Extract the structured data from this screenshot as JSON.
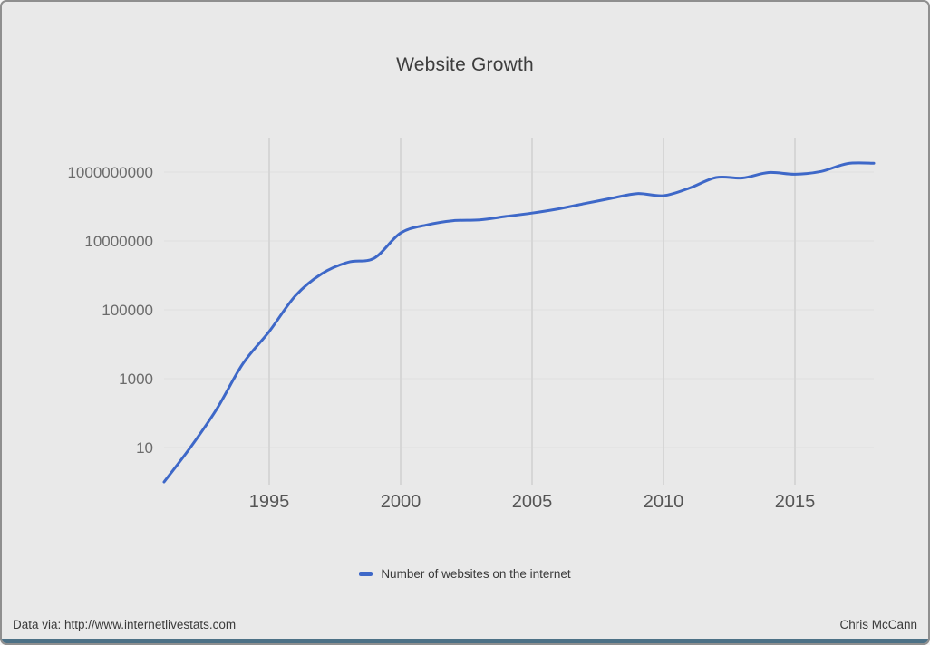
{
  "title": "Website Growth",
  "legend": {
    "label": "Number of websites on the internet",
    "color": "#3e68c8"
  },
  "footer": {
    "source": "Data via: http://www.internetlivestats.com",
    "author": "Chris McCann"
  },
  "colors": {
    "background": "#e9e9e9",
    "grid": "#d6d6d6",
    "grid_horizontal": "#dfdfdf",
    "line": "#3e68c8",
    "axis_text": "#6b6b6b",
    "x_axis_text": "#555555",
    "bottom_bar": "#4d7186"
  },
  "chart_data": {
    "type": "line",
    "title": "Website Growth",
    "xlabel": "",
    "ylabel": "",
    "y_scale": "log",
    "xlim": [
      1991,
      2018
    ],
    "ylim": [
      1,
      10000000000
    ],
    "x_ticks": [
      1995,
      2000,
      2005,
      2010,
      2015
    ],
    "y_ticks": [
      10,
      1000,
      100000,
      10000000,
      1000000000
    ],
    "grid": "on",
    "legend_position": "bottom",
    "x": [
      1991,
      1992,
      1993,
      1994,
      1995,
      1996,
      1997,
      1998,
      1999,
      2000,
      2001,
      2002,
      2003,
      2004,
      2005,
      2006,
      2007,
      2008,
      2009,
      2010,
      2011,
      2012,
      2013,
      2014,
      2015,
      2016,
      2017,
      2018
    ],
    "series": [
      {
        "name": "Number of websites on the internet",
        "values": [
          1,
          10,
          130,
          2738,
          23500,
          257601,
          1117255,
          2410067,
          3177453,
          17087182,
          29254370,
          38760373,
          40912332,
          51611646,
          64780617,
          85507314,
          121892559,
          172338726,
          238027855,
          206956723,
          346004403,
          697089489,
          672985183,
          968882453,
          863105652,
          1045534808,
          1766926408,
          1805260010
        ]
      }
    ]
  }
}
